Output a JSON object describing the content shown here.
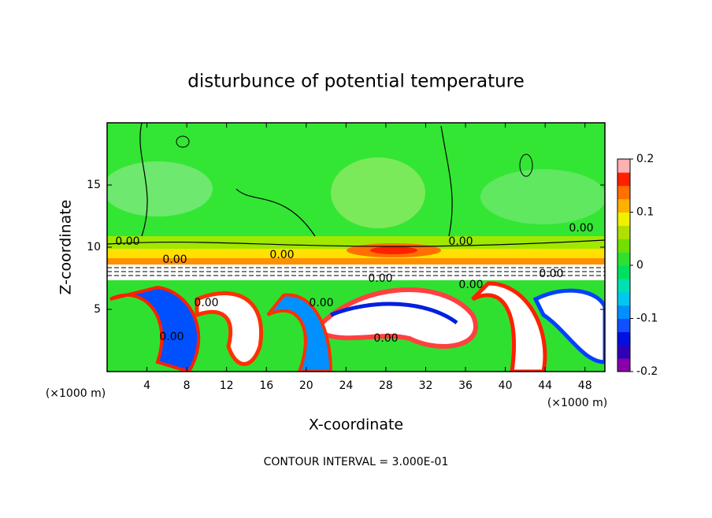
{
  "chart_data": {
    "type": "contour",
    "title": "disturbunce of potential temperature",
    "x_label": "X-coordinate",
    "y_label": "Z-coordinate",
    "x_unit_left": "(×1000 m)",
    "x_unit_right": "(×1000 m)",
    "footer": "CONTOUR INTERVAL = 3.000E-01",
    "xlim": [
      0,
      50
    ],
    "xticks": [
      4,
      8,
      12,
      16,
      20,
      24,
      28,
      32,
      36,
      40,
      44,
      48
    ],
    "ylim": [
      0,
      20
    ],
    "yticks": [
      5,
      10,
      15
    ],
    "colorbar_lim": [
      -0.2,
      0.2
    ],
    "colorbar_ticks": [
      0.2,
      0.1,
      0,
      -0.1,
      -0.2
    ],
    "colorbar_colors": [
      "#8a00a8",
      "#3000b8",
      "#0010e0",
      "#1050ff",
      "#0090ff",
      "#00c8f0",
      "#00e0b0",
      "#00e060",
      "#30e030",
      "#70e000",
      "#b0e000",
      "#f0f000",
      "#ffb000",
      "#ff7000",
      "#ff2000",
      "#ffb0b0"
    ],
    "contour_labels": [
      "0.00",
      "0.00",
      "0.00",
      "0.00",
      "0.00",
      "0.00",
      "0.00",
      "0.00",
      "0.00",
      "0.00",
      "0.00",
      "0.00"
    ]
  }
}
